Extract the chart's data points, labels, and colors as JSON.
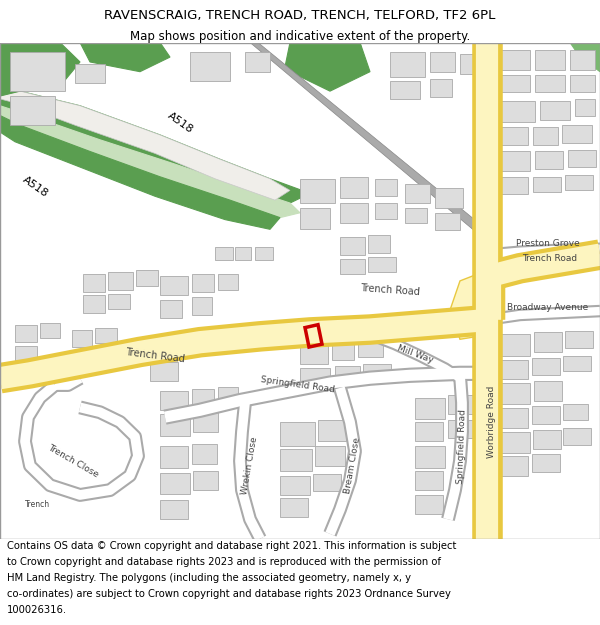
{
  "title_line1": "RAVENSCRAIG, TRENCH ROAD, TRENCH, TELFORD, TF2 6PL",
  "title_line2": "Map shows position and indicative extent of the property.",
  "footer_lines": [
    "Contains OS data © Crown copyright and database right 2021. This information is subject",
    "to Crown copyright and database rights 2023 and is reproduced with the permission of",
    "HM Land Registry. The polygons (including the associated geometry, namely x, y",
    "co-ordinates) are subject to Crown copyright and database rights 2023 Ordnance Survey",
    "100026316."
  ],
  "map_bg": "#ffffff",
  "road_yellow_fill": "#fdf5c0",
  "road_yellow_border": "#e8c840",
  "road_gray_fill": "#ffffff",
  "road_gray_border": "#aaaaaa",
  "building_fill": "#dddddd",
  "building_outline": "#aaaaaa",
  "green_dark": "#5a9e50",
  "green_light": "#c8e0bc",
  "green_medium": "#7ab870",
  "plot_color": "#cc0000",
  "label_color": "#444444",
  "title_fontsize": 9.5,
  "subtitle_fontsize": 8.5,
  "footer_fontsize": 7.2,
  "road_label_fontsize": 6.5
}
